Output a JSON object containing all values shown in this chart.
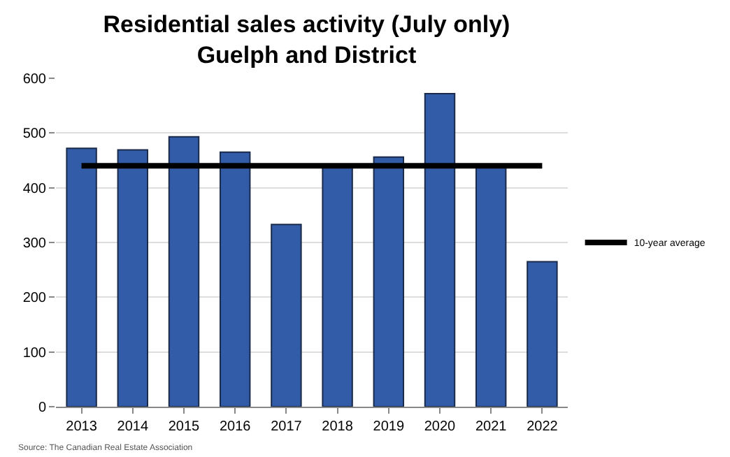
{
  "chart_data": {
    "type": "bar",
    "title": "Residential sales activity (July only)\nGuelph and District",
    "categories": [
      "2013",
      "2014",
      "2015",
      "2016",
      "2017",
      "2018",
      "2019",
      "2020",
      "2021",
      "2022"
    ],
    "series": [
      {
        "color": "#335ca8",
        "values": [
          472,
          469,
          493,
          465,
          333,
          439,
          456,
          572,
          439,
          265
        ]
      },
      {
        "type": "line",
        "name": "10-year average",
        "color": "#000000",
        "values": [
          440,
          440,
          440,
          440,
          440,
          440,
          440,
          440,
          440,
          440
        ]
      }
    ],
    "ylim": [
      0,
      600
    ],
    "yticks": [
      0,
      100,
      200,
      300,
      400,
      500,
      600
    ],
    "grid": "y",
    "legend": "right",
    "marker": "none",
    "annotations": [
      "Source: The Canadian Real Estate Association"
    ]
  }
}
